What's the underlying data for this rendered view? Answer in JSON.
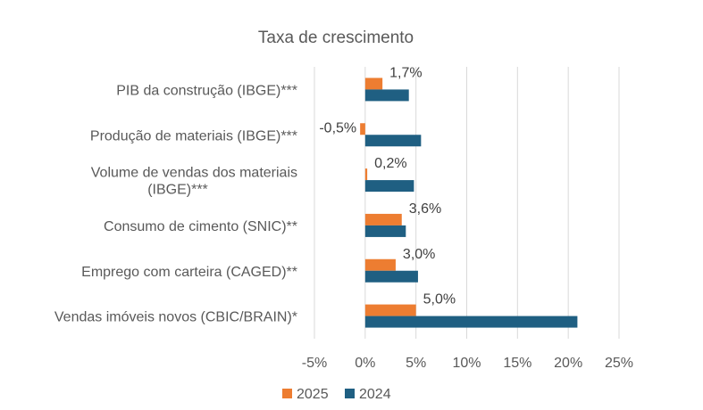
{
  "chart_data": {
    "type": "bar",
    "orientation": "horizontal",
    "title": "Taxa de crescimento",
    "xlabel": "",
    "ylabel": "",
    "xlim": [
      -5,
      25
    ],
    "x_ticks": [
      -5,
      0,
      5,
      10,
      15,
      20,
      25
    ],
    "x_tick_labels": [
      "-5%",
      "0%",
      "5%",
      "10%",
      "15%",
      "20%",
      "25%"
    ],
    "grid": true,
    "legend_position": "bottom",
    "categories": [
      [
        "PIB da construção (IBGE)***"
      ],
      [
        "Produção de materiais (IBGE)***"
      ],
      [
        "Volume de vendas dos materiais",
        "(IBGE)***"
      ],
      [
        "Consumo de cimento (SNIC)**"
      ],
      [
        "Emprego com carteira (CAGED)**"
      ],
      [
        "Vendas imóveis novos (CBIC/BRAIN)*"
      ]
    ],
    "series": [
      {
        "name": "2025",
        "color": "#ED7D31",
        "values": [
          1.7,
          -0.5,
          0.2,
          3.6,
          3.0,
          5.0
        ],
        "labels": [
          "1,7%",
          "-0,5%",
          "0,2%",
          "3,6%",
          "3,0%",
          "5,0%"
        ]
      },
      {
        "name": "2024",
        "color": "#1F5F82",
        "values": [
          4.3,
          5.5,
          4.8,
          4.0,
          5.2,
          20.9
        ]
      }
    ],
    "legend": [
      "2025",
      "2024"
    ]
  }
}
